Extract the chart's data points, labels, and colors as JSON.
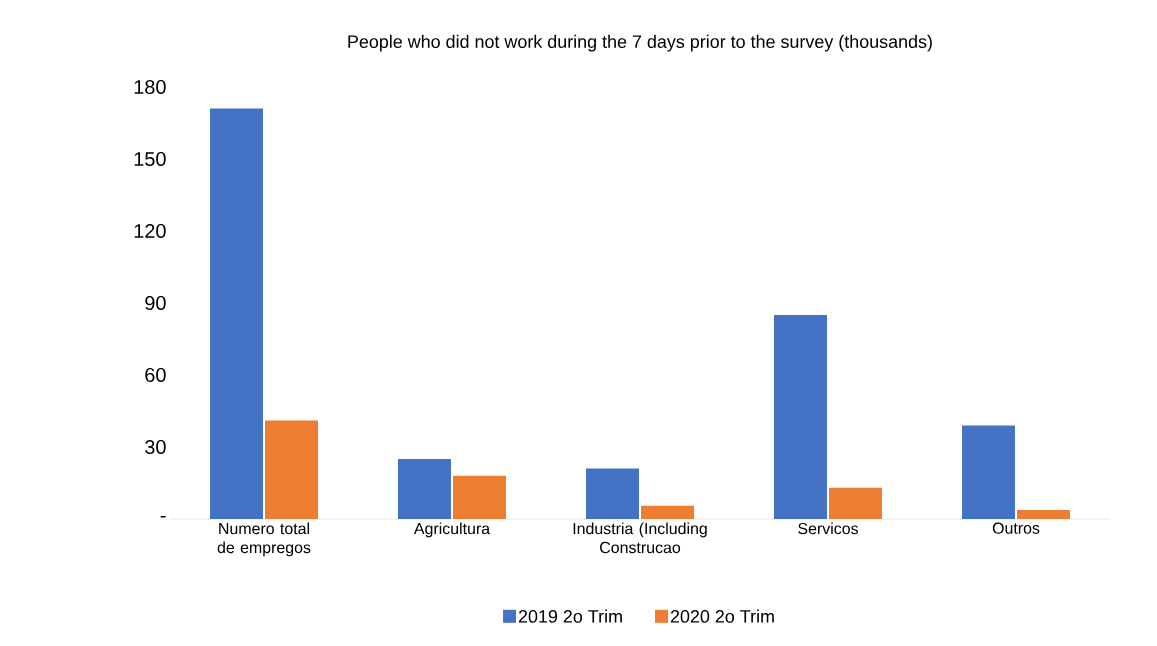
{
  "chart_data": {
    "type": "bar",
    "title": "People who did not work during the 7 days prior to the survey (thousands)",
    "categories": [
      "Numero total de empregos",
      "Agricultura",
      "Industria (Including Construcao",
      "Servicos",
      "Outros"
    ],
    "series": [
      {
        "name": "2019 2o Trim",
        "color": "#4472c4",
        "values": [
          171,
          25,
          21,
          85,
          39
        ]
      },
      {
        "name": "2020  2o Trim",
        "color": "#ed7d31",
        "values": [
          41,
          18,
          5.5,
          13,
          3.7
        ]
      }
    ],
    "ylim": [
      0,
      180
    ],
    "yticks": [
      {
        "value": 0,
        "label": "-"
      },
      30,
      60,
      90,
      120,
      150,
      180
    ],
    "grid": false,
    "legend": "bottom"
  }
}
